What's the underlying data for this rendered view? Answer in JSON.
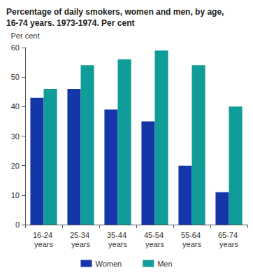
{
  "chart_data": {
    "type": "bar",
    "title": "Percentage of daily smokers, women and men, by age, 16-74 years. 1973-1974. Per cent",
    "y_label": "Per cent",
    "categories": [
      "16-24 years",
      "25-34 years",
      "35-44 years",
      "45-54 years",
      "55-64 years",
      "65-74 years"
    ],
    "series": [
      {
        "name": "Women",
        "color": "#1436a8",
        "values": [
          43,
          46,
          39,
          35,
          20,
          11
        ]
      },
      {
        "name": "Men",
        "color": "#109c98",
        "values": [
          46,
          54,
          56,
          59,
          54,
          40
        ]
      }
    ],
    "ylim": [
      0,
      60
    ],
    "yticks": [
      0,
      10,
      20,
      30,
      40,
      50,
      60
    ],
    "grid": false,
    "legend": "bottom"
  }
}
